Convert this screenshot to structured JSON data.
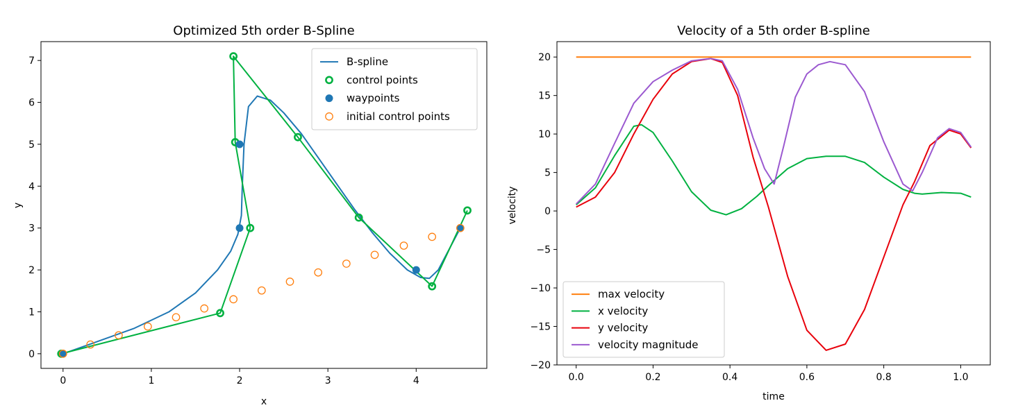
{
  "chart_data": [
    {
      "type": "line",
      "title": "Optimized 5th order B-Spline",
      "xlabel": "x",
      "ylabel": "y",
      "xlim": [
        -0.25,
        4.8
      ],
      "ylim": [
        -0.35,
        7.45
      ],
      "xticks": [
        0,
        1,
        2,
        3,
        4
      ],
      "yticks": [
        0,
        1,
        2,
        3,
        4,
        5,
        6,
        7
      ],
      "grid": false,
      "legend_position": "top-right",
      "series": [
        {
          "name": "B-spline",
          "kind": "line",
          "color": "#1f77b4",
          "x": [
            0,
            0.4,
            0.8,
            1.2,
            1.5,
            1.75,
            1.9,
            1.98,
            2.02,
            2.03,
            2.05,
            2.1,
            2.2,
            2.35,
            2.5,
            2.7,
            2.9,
            3.1,
            3.3,
            3.5,
            3.7,
            3.9,
            4.05,
            4.15,
            4.25,
            4.5
          ],
          "y": [
            0,
            0.3,
            0.6,
            1.0,
            1.45,
            2.0,
            2.45,
            2.85,
            3.3,
            4.0,
            5.0,
            5.9,
            6.15,
            6.05,
            5.75,
            5.25,
            4.65,
            4.05,
            3.45,
            2.9,
            2.4,
            2.0,
            1.82,
            1.8,
            2.0,
            3.0
          ]
        },
        {
          "name": "control points",
          "kind": "polyline-markers",
          "color": "#00b140",
          "x": [
            -0.02,
            1.78,
            2.12,
            1.95,
            1.93,
            2.66,
            3.35,
            4.18,
            4.58
          ],
          "y": [
            0.0,
            0.97,
            3.0,
            5.05,
            7.1,
            5.17,
            3.25,
            1.61,
            3.42
          ]
        },
        {
          "name": "waypoints",
          "kind": "scatter-filled",
          "color": "#1f77b4",
          "x": [
            0,
            2,
            2,
            4,
            4.5
          ],
          "y": [
            0,
            3,
            5,
            2,
            3
          ]
        },
        {
          "name": "initial control points",
          "kind": "scatter-hollow",
          "color": "#ff7f0e",
          "x": [
            0.0,
            0.31,
            0.63,
            0.96,
            1.28,
            1.6,
            1.93,
            2.25,
            2.57,
            2.89,
            3.21,
            3.53,
            3.86,
            4.18,
            4.5
          ],
          "y": [
            0.0,
            0.22,
            0.44,
            0.65,
            0.87,
            1.08,
            1.3,
            1.51,
            1.72,
            1.94,
            2.15,
            2.36,
            2.58,
            2.79,
            3.0
          ]
        }
      ]
    },
    {
      "type": "line",
      "title": "Velocity of a 5th order B-spline",
      "xlabel": "time",
      "ylabel": "velocity",
      "xlim": [
        -0.05,
        1.077
      ],
      "ylim": [
        -20,
        22
      ],
      "xticks": [
        0.0,
        0.2,
        0.4,
        0.6,
        0.8,
        1.0
      ],
      "xtick_labels": [
        "0.0",
        "0.2",
        "0.4",
        "0.6",
        "0.8",
        "1.0"
      ],
      "yticks": [
        -20,
        -15,
        -10,
        -5,
        0,
        5,
        10,
        15,
        20
      ],
      "ytick_labels": [
        "−20",
        "−15",
        "−10",
        "−5",
        "0",
        "5",
        "10",
        "15",
        "20"
      ],
      "grid": false,
      "legend_position": "bottom-left",
      "series": [
        {
          "name": "max velocity",
          "color": "#ff7f0e",
          "x": [
            0,
            1.027
          ],
          "y": [
            20,
            20
          ]
        },
        {
          "name": "x velocity",
          "color": "#00b140",
          "x": [
            0,
            0.05,
            0.1,
            0.15,
            0.17,
            0.2,
            0.25,
            0.3,
            0.35,
            0.39,
            0.43,
            0.47,
            0.5,
            0.55,
            0.6,
            0.65,
            0.7,
            0.75,
            0.8,
            0.85,
            0.88,
            0.9,
            0.95,
            1.0,
            1.027
          ],
          "y": [
            0.8,
            3.0,
            7.2,
            11.0,
            11.2,
            10.2,
            6.5,
            2.5,
            0.1,
            -0.5,
            0.3,
            1.9,
            3.3,
            5.5,
            6.8,
            7.1,
            7.1,
            6.3,
            4.4,
            2.8,
            2.3,
            2.2,
            2.4,
            2.3,
            1.8
          ]
        },
        {
          "name": "y velocity",
          "color": "#e8000b",
          "x": [
            0,
            0.05,
            0.1,
            0.15,
            0.2,
            0.25,
            0.3,
            0.35,
            0.38,
            0.42,
            0.46,
            0.5,
            0.55,
            0.6,
            0.65,
            0.7,
            0.75,
            0.8,
            0.85,
            0.88,
            0.92,
            0.97,
            1.0,
            1.027
          ],
          "y": [
            0.5,
            1.8,
            5.0,
            10.0,
            14.5,
            17.8,
            19.4,
            19.8,
            19.3,
            15.0,
            7.0,
            0.5,
            -8.5,
            -15.5,
            -18.1,
            -17.3,
            -12.8,
            -6.0,
            0.8,
            3.8,
            8.5,
            10.5,
            10.0,
            8.2
          ]
        },
        {
          "name": "velocity magnitude",
          "color": "#9b59d0",
          "x": [
            0,
            0.05,
            0.1,
            0.15,
            0.2,
            0.25,
            0.3,
            0.35,
            0.38,
            0.42,
            0.46,
            0.49,
            0.515,
            0.54,
            0.57,
            0.6,
            0.63,
            0.66,
            0.7,
            0.75,
            0.8,
            0.85,
            0.875,
            0.9,
            0.94,
            0.97,
            1.0,
            1.027
          ],
          "y": [
            0.9,
            3.5,
            8.8,
            14.0,
            16.8,
            18.3,
            19.5,
            19.8,
            19.5,
            15.8,
            9.5,
            5.5,
            3.5,
            8.5,
            14.8,
            17.8,
            19.0,
            19.4,
            19.0,
            15.5,
            9.0,
            3.5,
            2.6,
            5.0,
            9.5,
            10.7,
            10.2,
            8.3
          ]
        }
      ]
    }
  ]
}
